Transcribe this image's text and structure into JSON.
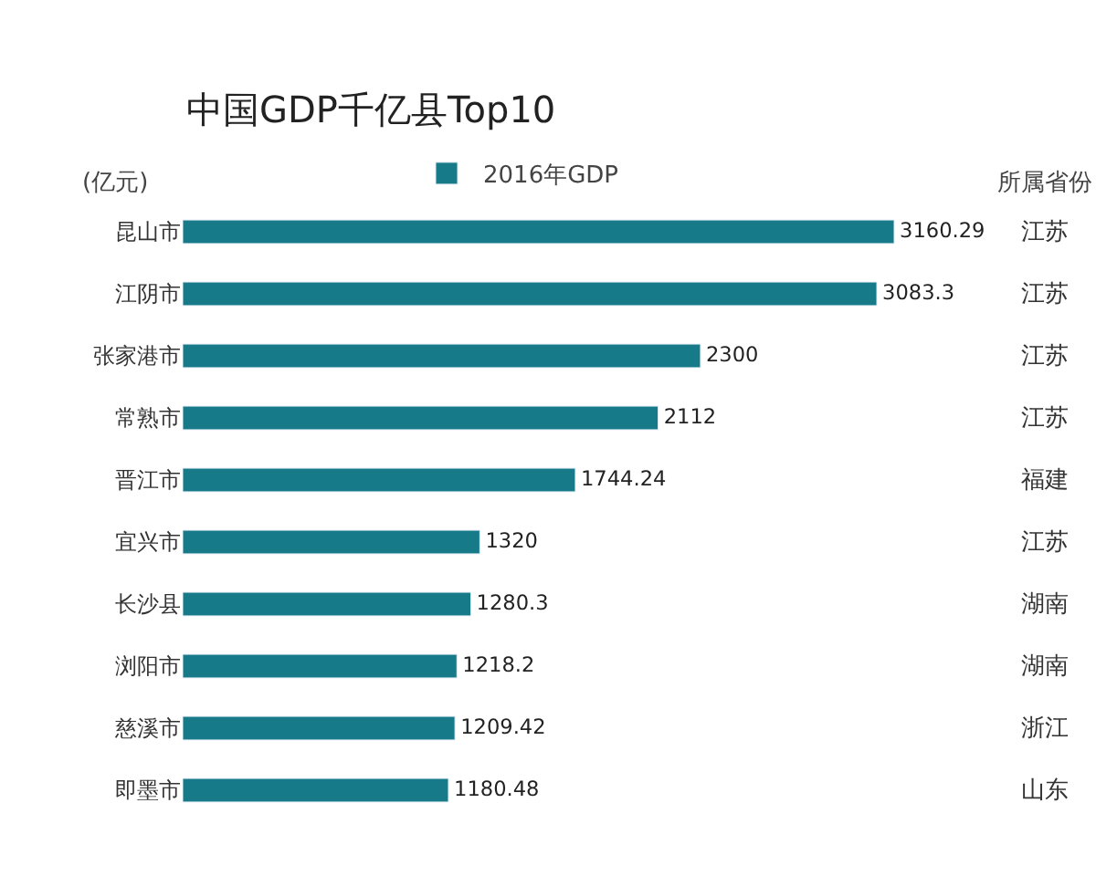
{
  "chart_data": {
    "type": "bar",
    "orientation": "horizontal",
    "title": "中国GDP千亿县Top10",
    "ylabel": "(亿元)",
    "annotations": [
      "所属省份"
    ],
    "categories": [
      "昆山市",
      "江阴市",
      "张家港市",
      "常熟市",
      "晋江市",
      "宜兴市",
      "长沙县",
      "浏阳市",
      "慈溪市",
      "即墨市"
    ],
    "y2_categories": [
      "江苏",
      "江苏",
      "江苏",
      "江苏",
      "福建",
      "江苏",
      "湖南",
      "湖南",
      "浙江",
      "山东"
    ],
    "series": [
      {
        "name": "2016年GDP",
        "color": "#167a88",
        "values": [
          3160.29,
          3083.3,
          2300,
          2112,
          1744.24,
          1320,
          1280.3,
          1218.2,
          1209.42,
          1180.48
        ]
      }
    ],
    "data_labels": true,
    "legend": "top"
  }
}
